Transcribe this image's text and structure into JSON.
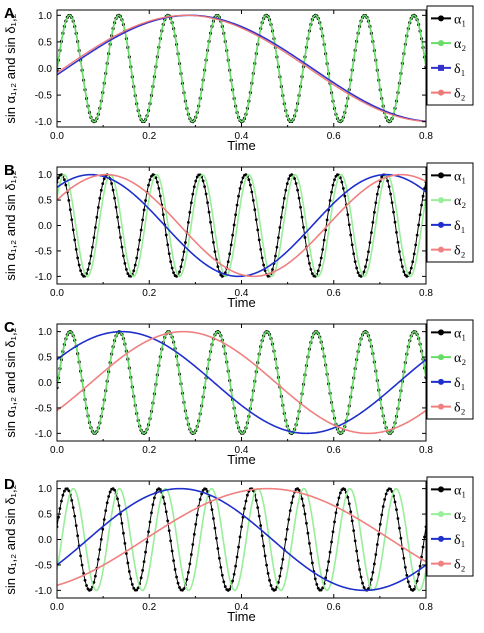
{
  "chart_data": [
    {
      "type": "line",
      "panel_label": "A",
      "xlabel": "Time",
      "ylabel": "sin α₁,₂ and sin δ₁,₂",
      "xlim": [
        0,
        0.8
      ],
      "ylim": [
        -1.1,
        1.1
      ],
      "xticks": [
        0.0,
        0.2,
        0.4,
        0.6,
        0.8
      ],
      "xtick_labels": [
        "0.0",
        "0.2",
        "0.4",
        "0.6",
        "0.8"
      ],
      "yticks": [
        1.0,
        0.5,
        0.0,
        -0.5,
        -1.0
      ],
      "ytick_labels": [
        "1.0",
        "0.5",
        "0.0",
        "-0.5",
        "-1.0"
      ],
      "legend_position": "right",
      "series": [
        {
          "name": "α₁",
          "color": "#000000",
          "marker": "circle",
          "line_width": 1.2,
          "marker_r": 1.6,
          "amplitude": 1.0,
          "cycles": 7.5,
          "initial_value": -0.03
        },
        {
          "name": "α₂",
          "color": "#66dd66",
          "marker": "circle",
          "line_width": 1.6,
          "marker_r": 0,
          "amplitude": 1.0,
          "cycles": 7.5,
          "initial_value": -0.03
        },
        {
          "name": "δ₁",
          "color": "#3333cc",
          "marker": "square",
          "line_width": 1.6,
          "marker_r": 0,
          "amplitude": 1.0,
          "cycles": 0.75,
          "initial_value": -0.12
        },
        {
          "name": "δ₂",
          "color": "#ee7777",
          "marker": "circle",
          "line_width": 1.3,
          "marker_r": 0,
          "amplitude": 1.0,
          "cycles": 0.75,
          "initial_value": -0.08
        }
      ]
    },
    {
      "type": "line",
      "panel_label": "B",
      "xlabel": "Time",
      "ylabel": "sin α₁,₂ and sin δ₁,₂",
      "xlim": [
        0,
        0.8
      ],
      "ylim": [
        -1.15,
        1.15
      ],
      "xticks": [
        0.0,
        0.2,
        0.4,
        0.6,
        0.8
      ],
      "xtick_labels": [
        "0.0",
        "0.2",
        "0.4",
        "0.6",
        "0.8"
      ],
      "yticks": [
        1.0,
        0.5,
        0.0,
        -0.5,
        -1.0
      ],
      "ytick_labels": [
        "1.0",
        "0.5",
        "0.0",
        "-0.5",
        "-1.0"
      ],
      "legend_position": "right",
      "series": [
        {
          "name": "α₁",
          "color": "#000000",
          "marker": "circle",
          "line_width": 1.0,
          "marker_r": 1.4,
          "amplitude": 1.0,
          "cycles": 8.0,
          "initial_value": 0.85
        },
        {
          "name": "α₂",
          "color": "#99ee99",
          "marker": "circle",
          "line_width": 1.6,
          "marker_r": 0,
          "amplitude": 1.0,
          "cycles": 8.0,
          "initial_value": 0.55
        },
        {
          "name": "δ₁",
          "color": "#1f2fcc",
          "marker": "circle",
          "line_width": 1.6,
          "marker_r": 0,
          "amplitude": 1.0,
          "cycles": 1.25,
          "initial_value": 0.75
        },
        {
          "name": "δ₂",
          "color": "#f08080",
          "marker": "circle",
          "line_width": 1.6,
          "marker_r": 0,
          "amplitude": 1.0,
          "cycles": 1.25,
          "initial_value": 0.5
        }
      ]
    },
    {
      "type": "line",
      "panel_label": "C",
      "xlabel": "Time",
      "ylabel": "sin α₁,₂ and sin δ₁,₂",
      "xlim": [
        0,
        0.8
      ],
      "ylim": [
        -1.15,
        1.15
      ],
      "xticks": [
        0.0,
        0.2,
        0.4,
        0.6,
        0.8
      ],
      "xtick_labels": [
        "0.0",
        "0.2",
        "0.4",
        "0.6",
        "0.8"
      ],
      "yticks": [
        1.0,
        0.5,
        0.0,
        -0.5,
        -1.0
      ],
      "ytick_labels": [
        "1.0",
        "0.5",
        "0.0",
        "-0.5",
        "-1.0"
      ],
      "legend_position": "right",
      "series": [
        {
          "name": "α₁",
          "color": "#000000",
          "marker": "circle",
          "line_width": 1.2,
          "marker_r": 1.6,
          "amplitude": 1.0,
          "cycles": 7.5,
          "initial_value": -0.1
        },
        {
          "name": "α₂",
          "color": "#66dd66",
          "marker": "circle",
          "line_width": 1.6,
          "marker_r": 0,
          "amplitude": 1.0,
          "cycles": 7.5,
          "initial_value": -0.1
        },
        {
          "name": "δ₁",
          "color": "#1f2fcc",
          "marker": "circle",
          "line_width": 1.6,
          "marker_r": 0,
          "amplitude": 1.0,
          "cycles": 1.0,
          "initial_value": 0.45
        },
        {
          "name": "δ₂",
          "color": "#f08080",
          "marker": "circle",
          "line_width": 1.6,
          "marker_r": 0,
          "amplitude": 1.0,
          "cycles": 1.0,
          "initial_value": -0.55
        }
      ]
    },
    {
      "type": "line",
      "panel_label": "D",
      "xlabel": "Time",
      "ylabel": "sin α₁,₂ and sin δ₁,₂",
      "xlim": [
        0,
        0.8
      ],
      "ylim": [
        -1.15,
        1.15
      ],
      "xticks": [
        0.0,
        0.2,
        0.4,
        0.6,
        0.8
      ],
      "xtick_labels": [
        "0.0",
        "0.2",
        "0.4",
        "0.6",
        "0.8"
      ],
      "yticks": [
        1.0,
        0.5,
        0.0,
        -0.5,
        -1.0
      ],
      "ytick_labels": [
        "1.0",
        "0.5",
        "0.0",
        "-0.5",
        "-1.0"
      ],
      "legend_position": "right",
      "series": [
        {
          "name": "α₁",
          "color": "#000000",
          "marker": "circle",
          "line_width": 1.0,
          "marker_r": 1.4,
          "amplitude": 1.0,
          "cycles": 8.0,
          "initial_value": 0.25
        },
        {
          "name": "α₂",
          "color": "#99ee99",
          "marker": "circle",
          "line_width": 1.6,
          "marker_r": 0,
          "amplitude": 1.0,
          "cycles": 8.0,
          "initial_value": -0.6
        },
        {
          "name": "δ₁",
          "color": "#1f2fcc",
          "marker": "circle",
          "line_width": 1.6,
          "marker_r": 0,
          "amplitude": 1.0,
          "cycles": 1.0,
          "initial_value": -0.5
        },
        {
          "name": "δ₂",
          "color": "#f08080",
          "marker": "circle",
          "line_width": 1.6,
          "marker_r": 0,
          "amplitude": 1.0,
          "cycles": 0.75,
          "initial_value": -0.9
        }
      ]
    }
  ]
}
